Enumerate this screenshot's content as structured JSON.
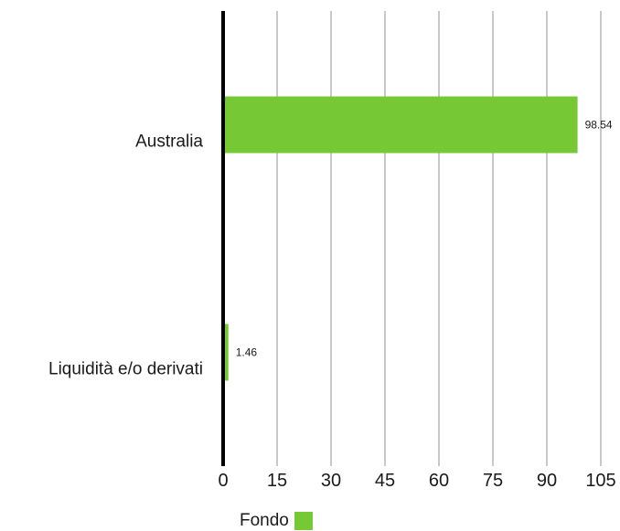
{
  "chart_data": {
    "type": "bar",
    "orientation": "horizontal",
    "categories": [
      "Australia",
      "Liquidità e/o derivati"
    ],
    "series": [
      {
        "name": "Fondo",
        "values": [
          98.54,
          1.46
        ],
        "color": "#76c935"
      }
    ],
    "data_labels": [
      "98.54",
      "1.46"
    ],
    "x_ticks": [
      "0",
      "15",
      "30",
      "45",
      "60",
      "75",
      "90",
      "105"
    ],
    "xlim": [
      0,
      105
    ],
    "grid": true,
    "legend_position": "bottom"
  },
  "legend": {
    "label": "Fondo"
  }
}
